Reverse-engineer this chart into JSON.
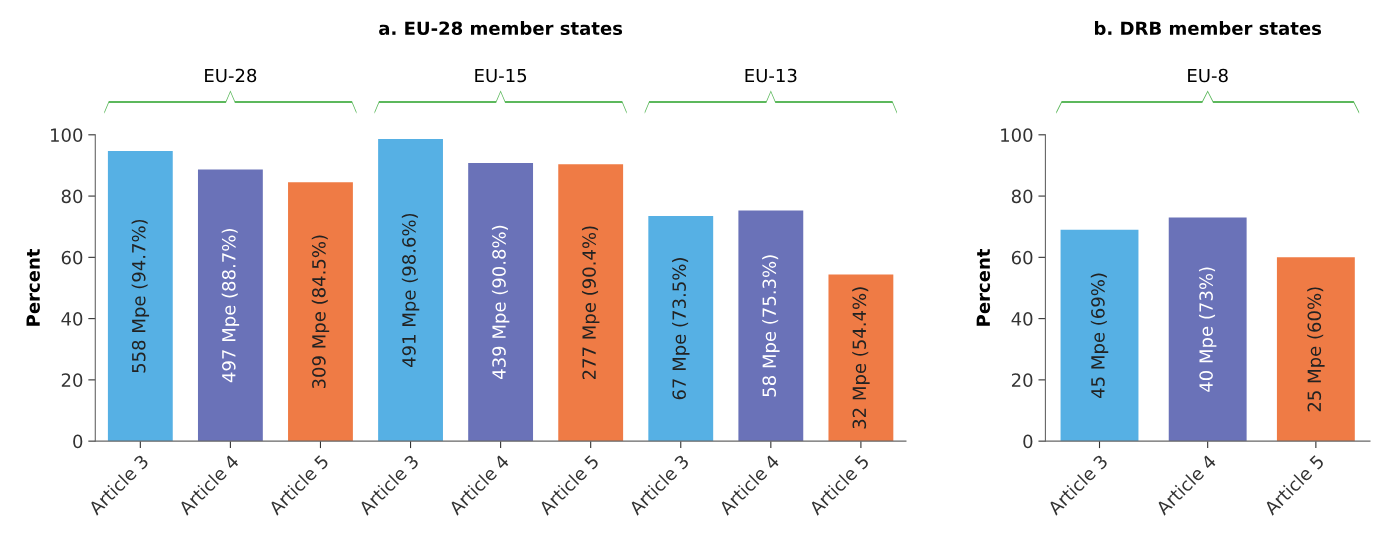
{
  "chart_data": [
    {
      "type": "bar",
      "title": "a. EU-28 member states",
      "ylabel": "Percent",
      "categories": [
        "Article 3",
        "Article 4",
        "Article 5",
        "Article 3",
        "Article 4",
        "Article 5",
        "Article 3",
        "Article 4",
        "Article 5"
      ],
      "values": [
        94.7,
        88.7,
        84.5,
        98.6,
        90.8,
        90.4,
        73.5,
        75.3,
        54.4
      ],
      "colors": [
        "#56b0e4",
        "#6a72b8",
        "#ef7b45",
        "#56b0e4",
        "#6a72b8",
        "#ef7b45",
        "#56b0e4",
        "#6a72b8",
        "#ef7b45"
      ],
      "value_labels": [
        "558 Mpe (94.7%)",
        "497 Mpe (88.7%)",
        "309 Mpe (84.5%)",
        "491 Mpe (98.6%)",
        "439 Mpe (90.8%)",
        "277 Mpe (90.4%)",
        "67 Mpe (73.5%)",
        "58 Mpe (75.3%)",
        "32 Mpe (54.4%)"
      ],
      "annotations": [
        "EU-28",
        "EU-15",
        "EU-13"
      ],
      "ylim": [
        0,
        100
      ],
      "yticks": [
        0,
        20,
        40,
        60,
        80,
        100
      ],
      "grid": false
    },
    {
      "type": "bar",
      "title": "b. DRB member states",
      "ylabel": "Percent",
      "categories": [
        "Article 3",
        "Article 4",
        "Article 5"
      ],
      "values": [
        69,
        73,
        60
      ],
      "colors": [
        "#56b0e4",
        "#6a72b8",
        "#ef7b45"
      ],
      "value_labels": [
        "45 Mpe (69%)",
        "40 Mpe (73%)",
        "25 Mpe (60%)"
      ],
      "annotations": [
        "EU-8"
      ],
      "ylim": [
        0,
        100
      ],
      "yticks": [
        0,
        20,
        40,
        60,
        80,
        100
      ],
      "grid": false
    }
  ]
}
